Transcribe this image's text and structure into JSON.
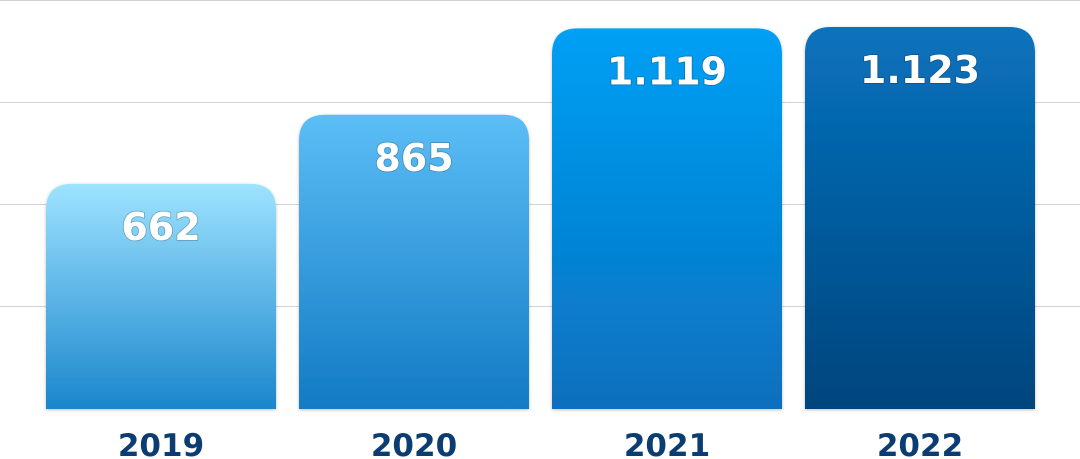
{
  "chart_data": {
    "type": "bar",
    "categories": [
      "2019",
      "2020",
      "2021",
      "2022"
    ],
    "values": [
      662,
      865,
      1119,
      1123
    ],
    "value_labels": [
      "662",
      "865",
      "1.119",
      "1.123"
    ],
    "title": "",
    "xlabel": "",
    "ylabel": "",
    "ylim": [
      0,
      1200
    ],
    "grid": true,
    "legend": "none",
    "colors": {
      "gridline": "#d2d2d2",
      "category_text": "#0b3d73",
      "value_text": "#ffffff",
      "bar_gradients": [
        [
          "#9ee3ff",
          "#1a86cc"
        ],
        [
          "#5cbef6",
          "#127ac4"
        ],
        [
          "#00a0f5",
          "#0a6fbd"
        ],
        [
          "#0872bd",
          "#00457d"
        ]
      ]
    }
  }
}
